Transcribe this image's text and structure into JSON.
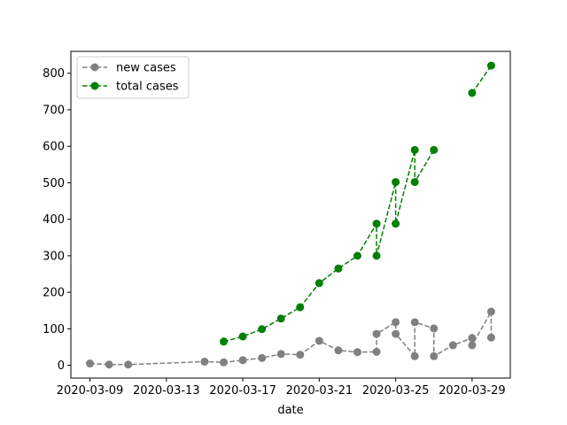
{
  "chart_data": {
    "type": "line",
    "title": "",
    "xlabel": "date",
    "ylabel": "",
    "xlim": [
      "2020-03-08",
      "2020-03-31"
    ],
    "ylim": [
      -35,
      860
    ],
    "x_ticks": [
      "2020-03-09",
      "2020-03-13",
      "2020-03-17",
      "2020-03-21",
      "2020-03-25",
      "2020-03-29"
    ],
    "y_ticks": [
      0,
      100,
      200,
      300,
      400,
      500,
      600,
      700,
      800
    ],
    "grid": false,
    "legend_position": "top-left",
    "series": [
      {
        "name": "new cases",
        "color": "#808080",
        "line_style": "dashed",
        "marker": "circle",
        "points": [
          [
            "2020-03-09",
            5
          ],
          [
            "2020-03-10",
            2
          ],
          [
            "2020-03-11",
            2
          ],
          [
            "2020-03-15",
            10
          ],
          [
            "2020-03-16",
            8
          ],
          [
            "2020-03-17",
            14
          ],
          [
            "2020-03-18",
            20
          ],
          [
            "2020-03-19",
            31
          ],
          [
            "2020-03-20",
            29
          ],
          [
            "2020-03-21",
            67
          ],
          [
            "2020-03-22",
            41
          ],
          [
            "2020-03-23",
            36
          ],
          [
            "2020-03-24",
            37
          ],
          [
            "2020-03-24",
            86
          ],
          [
            "2020-03-25",
            118
          ],
          [
            "2020-03-25",
            86
          ],
          [
            "2020-03-26",
            25
          ],
          [
            "2020-03-26",
            118
          ],
          [
            "2020-03-27",
            101
          ],
          [
            "2020-03-27",
            25
          ],
          [
            "2020-03-28",
            55
          ],
          [
            "2020-03-29",
            75
          ],
          [
            "2020-03-29",
            55
          ],
          [
            "2020-03-30",
            147
          ],
          [
            "2020-03-30",
            76
          ]
        ]
      },
      {
        "name": "total cases",
        "color": "#008000",
        "line_style": "dashed",
        "marker": "circle",
        "points": [
          [
            "2020-03-16",
            65
          ],
          [
            "2020-03-17",
            79
          ],
          [
            "2020-03-18",
            99
          ],
          [
            "2020-03-19",
            128
          ],
          [
            "2020-03-20",
            159
          ],
          [
            "2020-03-21",
            225
          ],
          [
            "2020-03-22",
            265
          ],
          [
            "2020-03-23",
            300
          ],
          [
            "2020-03-24",
            388
          ],
          [
            "2020-03-24",
            300
          ],
          [
            "2020-03-25",
            502
          ],
          [
            "2020-03-25",
            388
          ],
          [
            "2020-03-26",
            590
          ],
          [
            "2020-03-26",
            502
          ],
          [
            "2020-03-27",
            590
          ],
          [
            "2020-03-29",
            746
          ],
          [
            "2020-03-30",
            821
          ]
        ]
      }
    ]
  }
}
